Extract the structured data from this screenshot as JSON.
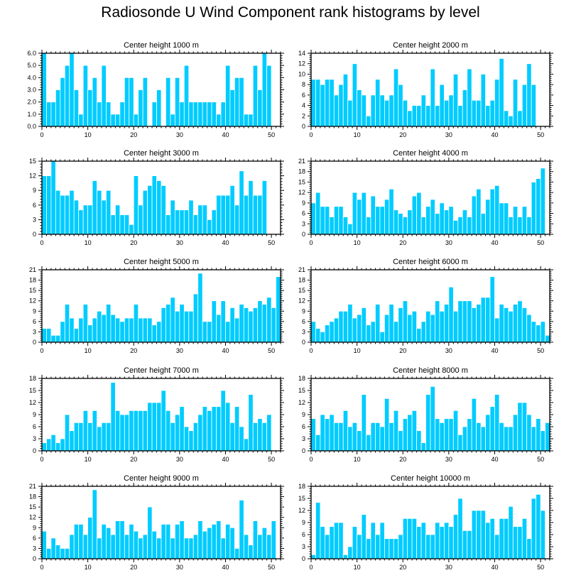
{
  "title": "Radiosonde U Wind Component rank histograms by level",
  "bar_color": "#00ccff",
  "chart_data": [
    {
      "type": "bar",
      "title": "Center height 1000 m",
      "xlim": [
        0,
        52
      ],
      "ylim": [
        0,
        6
      ],
      "xticks": [
        0,
        10,
        20,
        30,
        40,
        50
      ],
      "yticks": [
        0,
        1,
        2,
        3,
        4,
        5,
        6
      ],
      "ytick_labels": [
        "0.0",
        "1.0",
        "2.0",
        "3.0",
        "4.0",
        "5.0",
        "6.0"
      ],
      "values": [
        6,
        2,
        2,
        3,
        4,
        5,
        6,
        3,
        1,
        5,
        3,
        4,
        2,
        5,
        2,
        1,
        1,
        2,
        4,
        4,
        1,
        3,
        4,
        0,
        2,
        3,
        0,
        4,
        1,
        4,
        2,
        5,
        2,
        2,
        2,
        2,
        2,
        2,
        1,
        2,
        5,
        3,
        4,
        4,
        1,
        1,
        5,
        3,
        6,
        5
      ]
    },
    {
      "type": "bar",
      "title": "Center height 2000 m",
      "xlim": [
        0,
        52
      ],
      "ylim": [
        0,
        14
      ],
      "xticks": [
        0,
        10,
        20,
        30,
        40,
        50
      ],
      "yticks": [
        0,
        2,
        4,
        6,
        8,
        10,
        12,
        14
      ],
      "ytick_labels": [
        "0",
        "2",
        "4",
        "6",
        "8",
        "10",
        "12",
        "14"
      ],
      "values": [
        9,
        9,
        8,
        9,
        9,
        6,
        8,
        10,
        5,
        12,
        7,
        6,
        2,
        6,
        9,
        6,
        5,
        6,
        11,
        8,
        5,
        3,
        4,
        4,
        6,
        4,
        11,
        4,
        8,
        5,
        6,
        10,
        4,
        7,
        11,
        5,
        5,
        10,
        4,
        5,
        9,
        13,
        3,
        2,
        9,
        3,
        8,
        12,
        8
      ]
    },
    {
      "type": "bar",
      "title": "Center height 3000 m",
      "xlim": [
        0,
        52
      ],
      "ylim": [
        0,
        15
      ],
      "xticks": [
        0,
        10,
        20,
        30,
        40,
        50
      ],
      "yticks": [
        0,
        3,
        6,
        9,
        12,
        15
      ],
      "ytick_labels": [
        "0",
        "3",
        "6",
        "9",
        "12",
        "15"
      ],
      "values": [
        12,
        12,
        15,
        9,
        8,
        8,
        9,
        7,
        5,
        6,
        6,
        11,
        9,
        7,
        9,
        4,
        6,
        4,
        4,
        2,
        12,
        6,
        9,
        10,
        12,
        11,
        10,
        4,
        7,
        5,
        5,
        5,
        7,
        4,
        6,
        6,
        3,
        5,
        8,
        8,
        8,
        10,
        6,
        13,
        8,
        11,
        8,
        8,
        11
      ]
    },
    {
      "type": "bar",
      "title": "Center height 4000 m",
      "xlim": [
        0,
        52
      ],
      "ylim": [
        0,
        21
      ],
      "xticks": [
        0,
        10,
        20,
        30,
        40,
        50
      ],
      "yticks": [
        0,
        3,
        6,
        9,
        12,
        15,
        18,
        21
      ],
      "ytick_labels": [
        "0",
        "3",
        "6",
        "9",
        "12",
        "15",
        "18",
        "21"
      ],
      "values": [
        9,
        12,
        8,
        8,
        5,
        8,
        8,
        5,
        3,
        12,
        10,
        12,
        5,
        11,
        8,
        8,
        10,
        13,
        7,
        6,
        5,
        7,
        11,
        12,
        5,
        8,
        10,
        6,
        9,
        7,
        8,
        4,
        5,
        7,
        5,
        11,
        13,
        6,
        10,
        13,
        14,
        9,
        9,
        5,
        8,
        5,
        8,
        5,
        15,
        16,
        19
      ]
    },
    {
      "type": "bar",
      "title": "Center height 5000 m",
      "xlim": [
        0,
        52
      ],
      "ylim": [
        0,
        21
      ],
      "xticks": [
        0,
        10,
        20,
        30,
        40,
        50
      ],
      "yticks": [
        0,
        3,
        6,
        9,
        12,
        15,
        18,
        21
      ],
      "ytick_labels": [
        "0",
        "3",
        "6",
        "9",
        "12",
        "15",
        "18",
        "21"
      ],
      "values": [
        4,
        4,
        2,
        2,
        6,
        11,
        7,
        4,
        7,
        11,
        5,
        7,
        9,
        8,
        11,
        8,
        7,
        6,
        7,
        7,
        11,
        7,
        7,
        7,
        5,
        6,
        10,
        11,
        13,
        9,
        11,
        9,
        9,
        14,
        20,
        6,
        6,
        12,
        8,
        12,
        6,
        10,
        7,
        11,
        10,
        9,
        10,
        12,
        11,
        13,
        10,
        19
      ]
    },
    {
      "type": "bar",
      "title": "Center height 6000 m",
      "xlim": [
        0,
        52
      ],
      "ylim": [
        0,
        21
      ],
      "xticks": [
        0,
        10,
        20,
        30,
        40,
        50
      ],
      "yticks": [
        0,
        3,
        6,
        9,
        12,
        15,
        18,
        21
      ],
      "ytick_labels": [
        "0",
        "3",
        "6",
        "9",
        "12",
        "15",
        "18",
        "21"
      ],
      "values": [
        6,
        4,
        3,
        5,
        6,
        7,
        9,
        9,
        11,
        7,
        8,
        10,
        5,
        6,
        11,
        3,
        8,
        11,
        6,
        10,
        12,
        8,
        9,
        4,
        6,
        9,
        8,
        12,
        9,
        11,
        16,
        9,
        12,
        12,
        12,
        10,
        11,
        13,
        13,
        19,
        7,
        11,
        10,
        9,
        11,
        12,
        10,
        8,
        6,
        5,
        6,
        2
      ]
    },
    {
      "type": "bar",
      "title": "Center height 7000 m",
      "xlim": [
        0,
        52
      ],
      "ylim": [
        0,
        18
      ],
      "xticks": [
        0,
        10,
        20,
        30,
        40,
        50
      ],
      "yticks": [
        0,
        3,
        6,
        9,
        12,
        15,
        18
      ],
      "ytick_labels": [
        "0",
        "3",
        "6",
        "9",
        "12",
        "15",
        "18"
      ],
      "values": [
        2,
        3,
        4,
        2,
        3,
        9,
        5,
        7,
        7,
        10,
        7,
        10,
        6,
        7,
        7,
        17,
        10,
        9,
        9,
        10,
        10,
        10,
        10,
        12,
        12,
        12,
        15,
        10,
        7,
        9,
        11,
        6,
        5,
        7,
        9,
        11,
        10,
        11,
        11,
        15,
        12,
        7,
        11,
        6,
        3,
        14,
        7,
        8,
        7,
        9
      ]
    },
    {
      "type": "bar",
      "title": "Center height 8000 m",
      "xlim": [
        0,
        52
      ],
      "ylim": [
        0,
        18
      ],
      "xticks": [
        0,
        10,
        20,
        30,
        40,
        50
      ],
      "yticks": [
        0,
        3,
        6,
        9,
        12,
        15,
        18
      ],
      "ytick_labels": [
        "0",
        "3",
        "6",
        "9",
        "12",
        "15",
        "18"
      ],
      "values": [
        8,
        4,
        9,
        8,
        9,
        7,
        7,
        10,
        6,
        7,
        5,
        14,
        4,
        7,
        7,
        6,
        13,
        7,
        10,
        5,
        8,
        9,
        10,
        5,
        2,
        14,
        16,
        8,
        7,
        8,
        8,
        10,
        4,
        6,
        8,
        13,
        7,
        6,
        9,
        11,
        14,
        7,
        6,
        6,
        9,
        12,
        12,
        9,
        6,
        8,
        5,
        7
      ]
    },
    {
      "type": "bar",
      "title": "Center height 9000 m",
      "xlim": [
        0,
        52
      ],
      "ylim": [
        0,
        21
      ],
      "xticks": [
        0,
        10,
        20,
        30,
        40,
        50
      ],
      "yticks": [
        0,
        3,
        6,
        9,
        12,
        15,
        18,
        21
      ],
      "ytick_labels": [
        "0",
        "3",
        "6",
        "9",
        "12",
        "15",
        "18",
        "21"
      ],
      "values": [
        8,
        3,
        6,
        4,
        3,
        3,
        7,
        10,
        10,
        7,
        12,
        20,
        6,
        10,
        9,
        7,
        11,
        11,
        7,
        10,
        8,
        6,
        7,
        15,
        8,
        6,
        10,
        10,
        6,
        10,
        11,
        6,
        6,
        7,
        11,
        8,
        9,
        10,
        11,
        6,
        10,
        9,
        3,
        17,
        7,
        4,
        11,
        7,
        9,
        7,
        11
      ]
    },
    {
      "type": "bar",
      "title": "Center height 10000 m",
      "xlim": [
        0,
        52
      ],
      "ylim": [
        0,
        18
      ],
      "xticks": [
        0,
        10,
        20,
        30,
        40,
        50
      ],
      "yticks": [
        0,
        3,
        6,
        9,
        12,
        15,
        18
      ],
      "ytick_labels": [
        "0",
        "3",
        "6",
        "9",
        "12",
        "15",
        "18"
      ],
      "values": [
        1,
        14,
        8,
        6,
        8,
        9,
        9,
        1,
        3,
        8,
        6,
        11,
        5,
        9,
        6,
        9,
        5,
        5,
        5,
        6,
        10,
        10,
        10,
        8,
        9,
        6,
        6,
        9,
        8,
        9,
        8,
        11,
        15,
        7,
        7,
        12,
        12,
        12,
        9,
        10,
        6,
        10,
        10,
        13,
        8,
        8,
        10,
        5,
        15,
        16,
        12
      ]
    }
  ]
}
